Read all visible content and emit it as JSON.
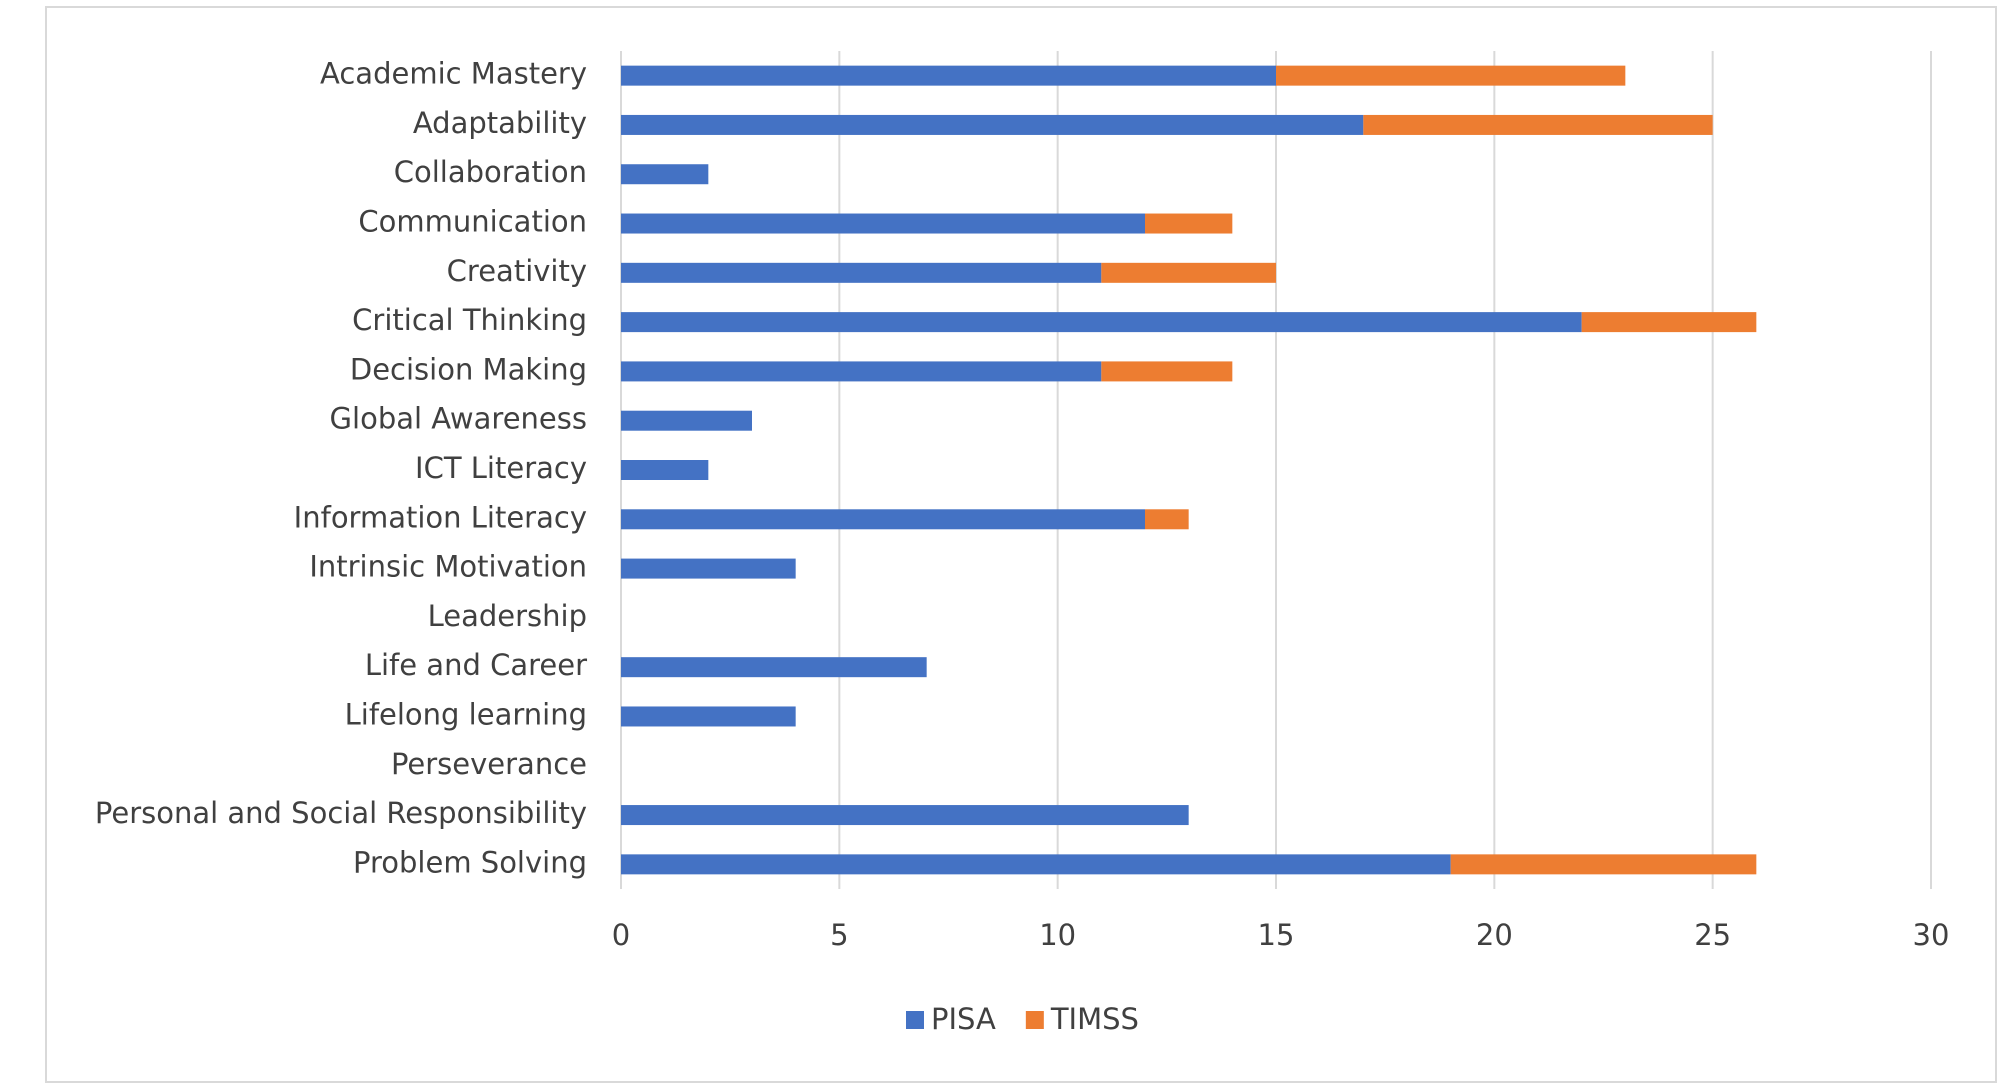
{
  "chart_data": {
    "type": "stacked-bar-horizontal",
    "categories": [
      "Academic Mastery",
      "Adaptability",
      "Collaboration",
      "Communication",
      "Creativity",
      "Critical Thinking",
      "Decision Making",
      "Global Awareness",
      "ICT Literacy",
      "Information Literacy",
      "Intrinsic Motivation",
      "Leadership",
      "Life and Career",
      "Lifelong learning",
      "Perseverance",
      "Personal and Social Responsibility",
      "Problem Solving"
    ],
    "series": [
      {
        "name": "PISA",
        "color": "#4472c4",
        "values": [
          15,
          17,
          2,
          12,
          11,
          22,
          11,
          3,
          2,
          12,
          4,
          0,
          7,
          4,
          0,
          13,
          19
        ]
      },
      {
        "name": "TIMSS",
        "color": "#ed7d31",
        "values": [
          8,
          8,
          0,
          2,
          4,
          4,
          3,
          0,
          0,
          1,
          0,
          0,
          0,
          0,
          0,
          0,
          7
        ]
      }
    ],
    "xlim": [
      0,
      30
    ],
    "xticks": [
      0,
      5,
      10,
      15,
      20,
      25,
      30
    ],
    "grid": true,
    "legend": "bottom"
  }
}
